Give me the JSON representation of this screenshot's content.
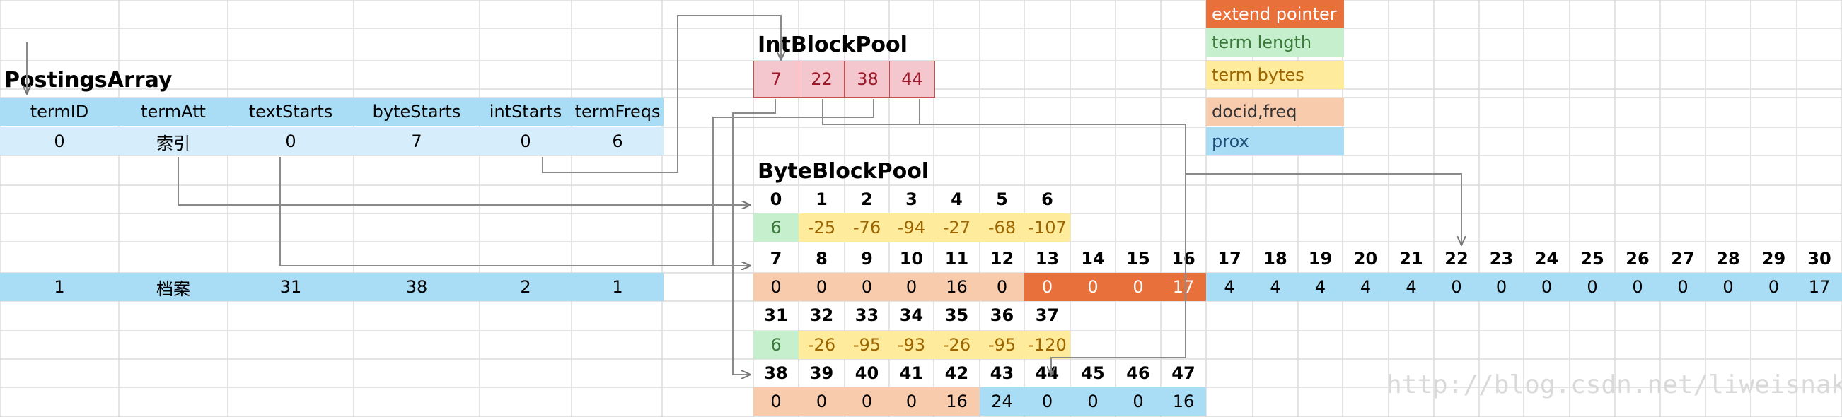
{
  "postings": {
    "title": "PostingsArray",
    "headers": [
      "termID",
      "termAtt",
      "textStarts",
      "byteStarts",
      "intStarts",
      "termFreqs"
    ],
    "rows": [
      [
        "0",
        "索引",
        "0",
        "7",
        "0",
        "6"
      ],
      [
        "1",
        "档案",
        "31",
        "38",
        "2",
        "1"
      ]
    ]
  },
  "int_pool": {
    "title": "IntBlockPool",
    "values": [
      "7",
      "22",
      "38",
      "44"
    ]
  },
  "byte_pool": {
    "title": "ByteBlockPool",
    "row1_idx": [
      "0",
      "1",
      "2",
      "3",
      "4",
      "5",
      "6"
    ],
    "row1_val": [
      "6",
      "-25",
      "-76",
      "-94",
      "-27",
      "-68",
      "-107"
    ],
    "row2_idx": [
      "7",
      "8",
      "9",
      "10",
      "11",
      "12",
      "13",
      "14",
      "15",
      "16",
      "17",
      "18",
      "19",
      "20",
      "21",
      "22",
      "23",
      "24",
      "25",
      "26",
      "27",
      "28",
      "29",
      "30"
    ],
    "row2_val": [
      "0",
      "0",
      "0",
      "0",
      "16",
      "0",
      "0",
      "0",
      "0",
      "17",
      "4",
      "4",
      "4",
      "4",
      "4",
      "0",
      "0",
      "0",
      "0",
      "0",
      "0",
      "0",
      "0",
      "17"
    ],
    "row3_idx": [
      "31",
      "32",
      "33",
      "34",
      "35",
      "36",
      "37"
    ],
    "row3_val": [
      "6",
      "-26",
      "-95",
      "-93",
      "-26",
      "-95",
      "-120"
    ],
    "row4_idx": [
      "38",
      "39",
      "40",
      "41",
      "42",
      "43",
      "44",
      "45",
      "46",
      "47"
    ],
    "row4_val": [
      "0",
      "0",
      "0",
      "0",
      "16",
      "24",
      "0",
      "0",
      "0",
      "16"
    ]
  },
  "legend": [
    {
      "label": "extend pointer",
      "color": "#e8703a",
      "text_color": "#ffffff"
    },
    {
      "label": "term length",
      "color": "#c6efce",
      "text_color": "#3b7a3b"
    },
    {
      "label": "term bytes",
      "color": "#ffeb9c",
      "text_color": "#9c6500"
    },
    {
      "label": "docid,freq",
      "color": "#f8cbad",
      "text_color": "#333333"
    },
    {
      "label": "prox",
      "color": "#a9dcf5",
      "text_color": "#1f4e79"
    }
  ],
  "watermark": "http://blog.csdn.net/liweisnake"
}
